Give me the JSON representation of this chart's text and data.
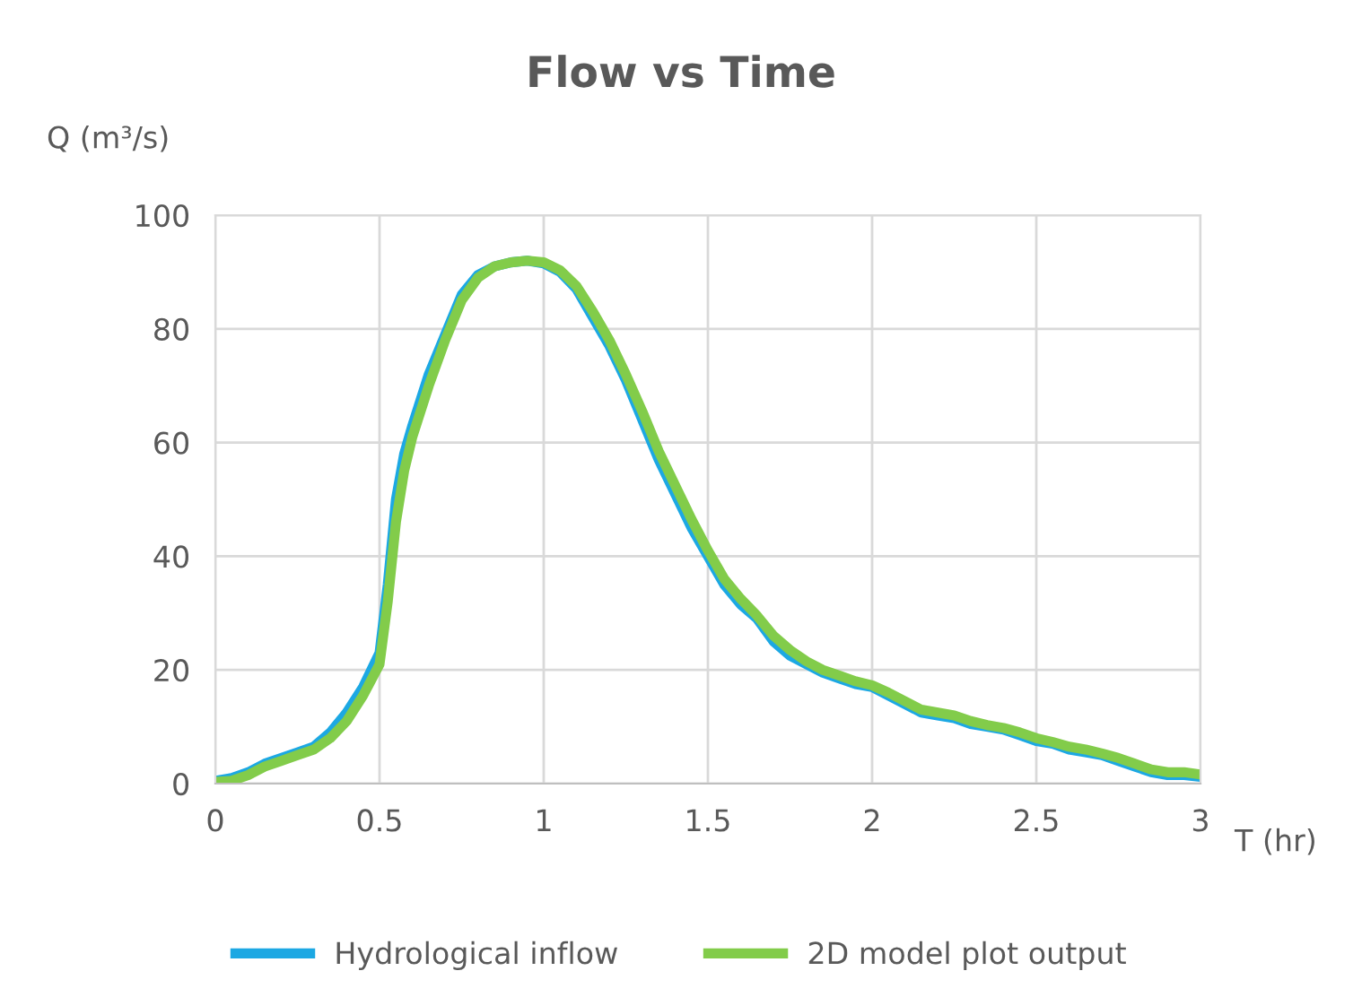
{
  "chart_data": {
    "type": "line",
    "title": "Flow vs Time",
    "xlabel": "T (hr)",
    "ylabel": "Q (m³/s)",
    "x": [
      0,
      0.05,
      0.1,
      0.15,
      0.2,
      0.25,
      0.3,
      0.35,
      0.4,
      0.45,
      0.5,
      0.525,
      0.55,
      0.575,
      0.6,
      0.65,
      0.7,
      0.75,
      0.8,
      0.85,
      0.9,
      0.95,
      1.0,
      1.05,
      1.1,
      1.15,
      1.2,
      1.25,
      1.3,
      1.35,
      1.4,
      1.45,
      1.5,
      1.55,
      1.6,
      1.65,
      1.7,
      1.75,
      1.8,
      1.85,
      1.9,
      1.95,
      2.0,
      2.05,
      2.1,
      2.15,
      2.2,
      2.25,
      2.3,
      2.35,
      2.4,
      2.45,
      2.5,
      2.55,
      2.6,
      2.65,
      2.7,
      2.75,
      2.8,
      2.85,
      2.9,
      2.95,
      3.0
    ],
    "series": [
      {
        "name": "Hydrological inflow",
        "color": "#1ca8e3",
        "values": [
          0.5,
          1,
          2,
          3.5,
          4.5,
          5.5,
          6.5,
          9,
          12.5,
          17,
          23,
          35,
          50,
          58,
          63,
          72,
          79,
          86,
          89.5,
          91,
          91.7,
          92,
          91.5,
          90,
          87,
          82,
          77,
          71,
          64,
          57,
          51,
          45,
          40,
          35,
          31.5,
          29,
          25,
          22.5,
          21,
          19.5,
          18.5,
          17.5,
          17,
          15.5,
          14,
          12.5,
          12,
          11.5,
          10.5,
          10,
          9.5,
          8.5,
          7.5,
          7,
          6,
          5.5,
          5,
          4,
          3,
          2,
          1.5,
          1.5,
          1.2
        ]
      },
      {
        "name": "2D model plot output",
        "color": "#82cc4a",
        "values": [
          0.3,
          0.5,
          1.5,
          3,
          4,
          5,
          6,
          8,
          11,
          15.5,
          21,
          32,
          46,
          55,
          61,
          70,
          78,
          85,
          89,
          91,
          91.7,
          92,
          91.7,
          90.3,
          87.5,
          83,
          78,
          72,
          65.5,
          58.5,
          52.5,
          46.5,
          41,
          36,
          32.5,
          29.5,
          26,
          23.5,
          21.5,
          20,
          19,
          18,
          17.3,
          16,
          14.5,
          13,
          12.5,
          12,
          11,
          10.3,
          9.8,
          9,
          8,
          7.3,
          6.5,
          6,
          5.3,
          4.5,
          3.5,
          2.5,
          2,
          2,
          1.6
        ]
      }
    ],
    "xlim": [
      0,
      3
    ],
    "xticks": [
      0,
      0.5,
      1,
      1.5,
      2,
      2.5,
      3
    ],
    "ylim": [
      0,
      100
    ],
    "yticks": [
      0,
      20,
      40,
      60,
      80,
      100
    ],
    "grid": true,
    "legend": "bottom",
    "line_style": "solid",
    "marker": "none"
  }
}
